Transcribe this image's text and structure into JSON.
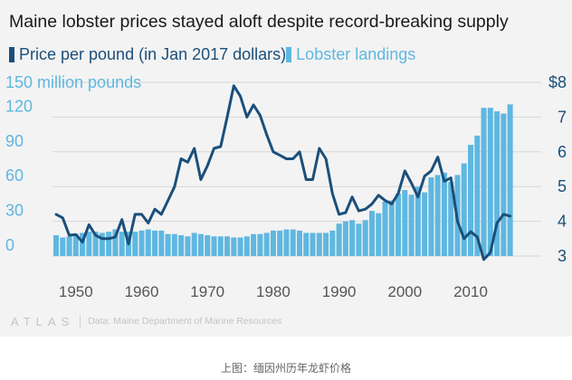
{
  "title": "Maine lobster prices stayed aloft despite record-breaking supply",
  "legend": {
    "price_label": "Price per pound (in Jan 2017 dollars)",
    "landings_label": "Lobster landings"
  },
  "source": {
    "brand": "ATLAS",
    "text": "Data: Maine Department of Marine Resources"
  },
  "caption": "上图：缅因州历年龙虾价格",
  "colors": {
    "price": "#1b4f7a",
    "landings": "#5fb7e0",
    "grid": "#d7d7d7",
    "panel": "#f3f3f3"
  },
  "chart_data": {
    "type": "bar-line",
    "title": "Maine lobster prices stayed aloft despite record-breaking supply",
    "x_ticks": [
      "1950",
      "1960",
      "1970",
      "1980",
      "1990",
      "2000",
      "2010"
    ],
    "left_axis": {
      "ticks": [
        "0",
        "30",
        "60",
        "90",
        "120",
        "150 million pounds"
      ],
      "range": [
        0,
        150
      ],
      "unit": "million pounds"
    },
    "right_axis": {
      "ticks": [
        "3",
        "4",
        "5",
        "6",
        "7",
        "$8"
      ],
      "range": [
        3,
        8
      ],
      "unit": "dollars per pound"
    },
    "grid": true,
    "legend_position": "top-left",
    "years": [
      1947,
      1948,
      1949,
      1950,
      1951,
      1952,
      1953,
      1954,
      1955,
      1956,
      1957,
      1958,
      1959,
      1960,
      1961,
      1962,
      1963,
      1964,
      1965,
      1966,
      1967,
      1968,
      1969,
      1970,
      1971,
      1972,
      1973,
      1974,
      1975,
      1976,
      1977,
      1978,
      1979,
      1980,
      1981,
      1982,
      1983,
      1984,
      1985,
      1986,
      1987,
      1988,
      1989,
      1990,
      1991,
      1992,
      1993,
      1994,
      1995,
      1996,
      1997,
      1998,
      1999,
      2000,
      2001,
      2002,
      2003,
      2004,
      2005,
      2006,
      2007,
      2008,
      2009,
      2010,
      2011,
      2012,
      2013,
      2014,
      2015,
      2016
    ],
    "series": [
      {
        "name": "Lobster landings",
        "kind": "bar",
        "axis": "left",
        "values": [
          18,
          16,
          17,
          19,
          20,
          21,
          21,
          20,
          21,
          23,
          21,
          21,
          21,
          22,
          23,
          22,
          22,
          19,
          19,
          18,
          17,
          20,
          19,
          18,
          17,
          17,
          17,
          16,
          16,
          17,
          19,
          19,
          20,
          22,
          22,
          23,
          23,
          22,
          20,
          20,
          20,
          20,
          22,
          28,
          30,
          31,
          28,
          31,
          39,
          37,
          47,
          48,
          54,
          57,
          53,
          60,
          55,
          68,
          70,
          72,
          64,
          70,
          80,
          96,
          104,
          128,
          128,
          125,
          123,
          131
        ]
      },
      {
        "name": "Price per pound (in Jan 2017 dollars)",
        "kind": "line",
        "axis": "right",
        "values": [
          4.2,
          4.1,
          3.6,
          3.62,
          3.4,
          3.9,
          3.6,
          3.5,
          3.5,
          3.55,
          4.05,
          3.35,
          4.2,
          4.2,
          3.95,
          4.35,
          4.2,
          4.6,
          5.0,
          5.8,
          5.7,
          6.1,
          5.2,
          5.6,
          6.1,
          6.15,
          7.0,
          7.9,
          7.6,
          7.0,
          7.35,
          7.05,
          6.5,
          6.0,
          5.9,
          5.8,
          5.8,
          6.0,
          5.2,
          5.2,
          6.1,
          5.8,
          4.8,
          4.2,
          4.25,
          4.7,
          4.3,
          4.35,
          4.5,
          4.75,
          4.6,
          4.5,
          4.8,
          5.45,
          5.1,
          4.7,
          5.3,
          5.45,
          5.85,
          5.15,
          5.25,
          4.0,
          3.5,
          3.7,
          3.55,
          2.9,
          3.1,
          3.95,
          4.2,
          4.15
        ]
      }
    ]
  }
}
